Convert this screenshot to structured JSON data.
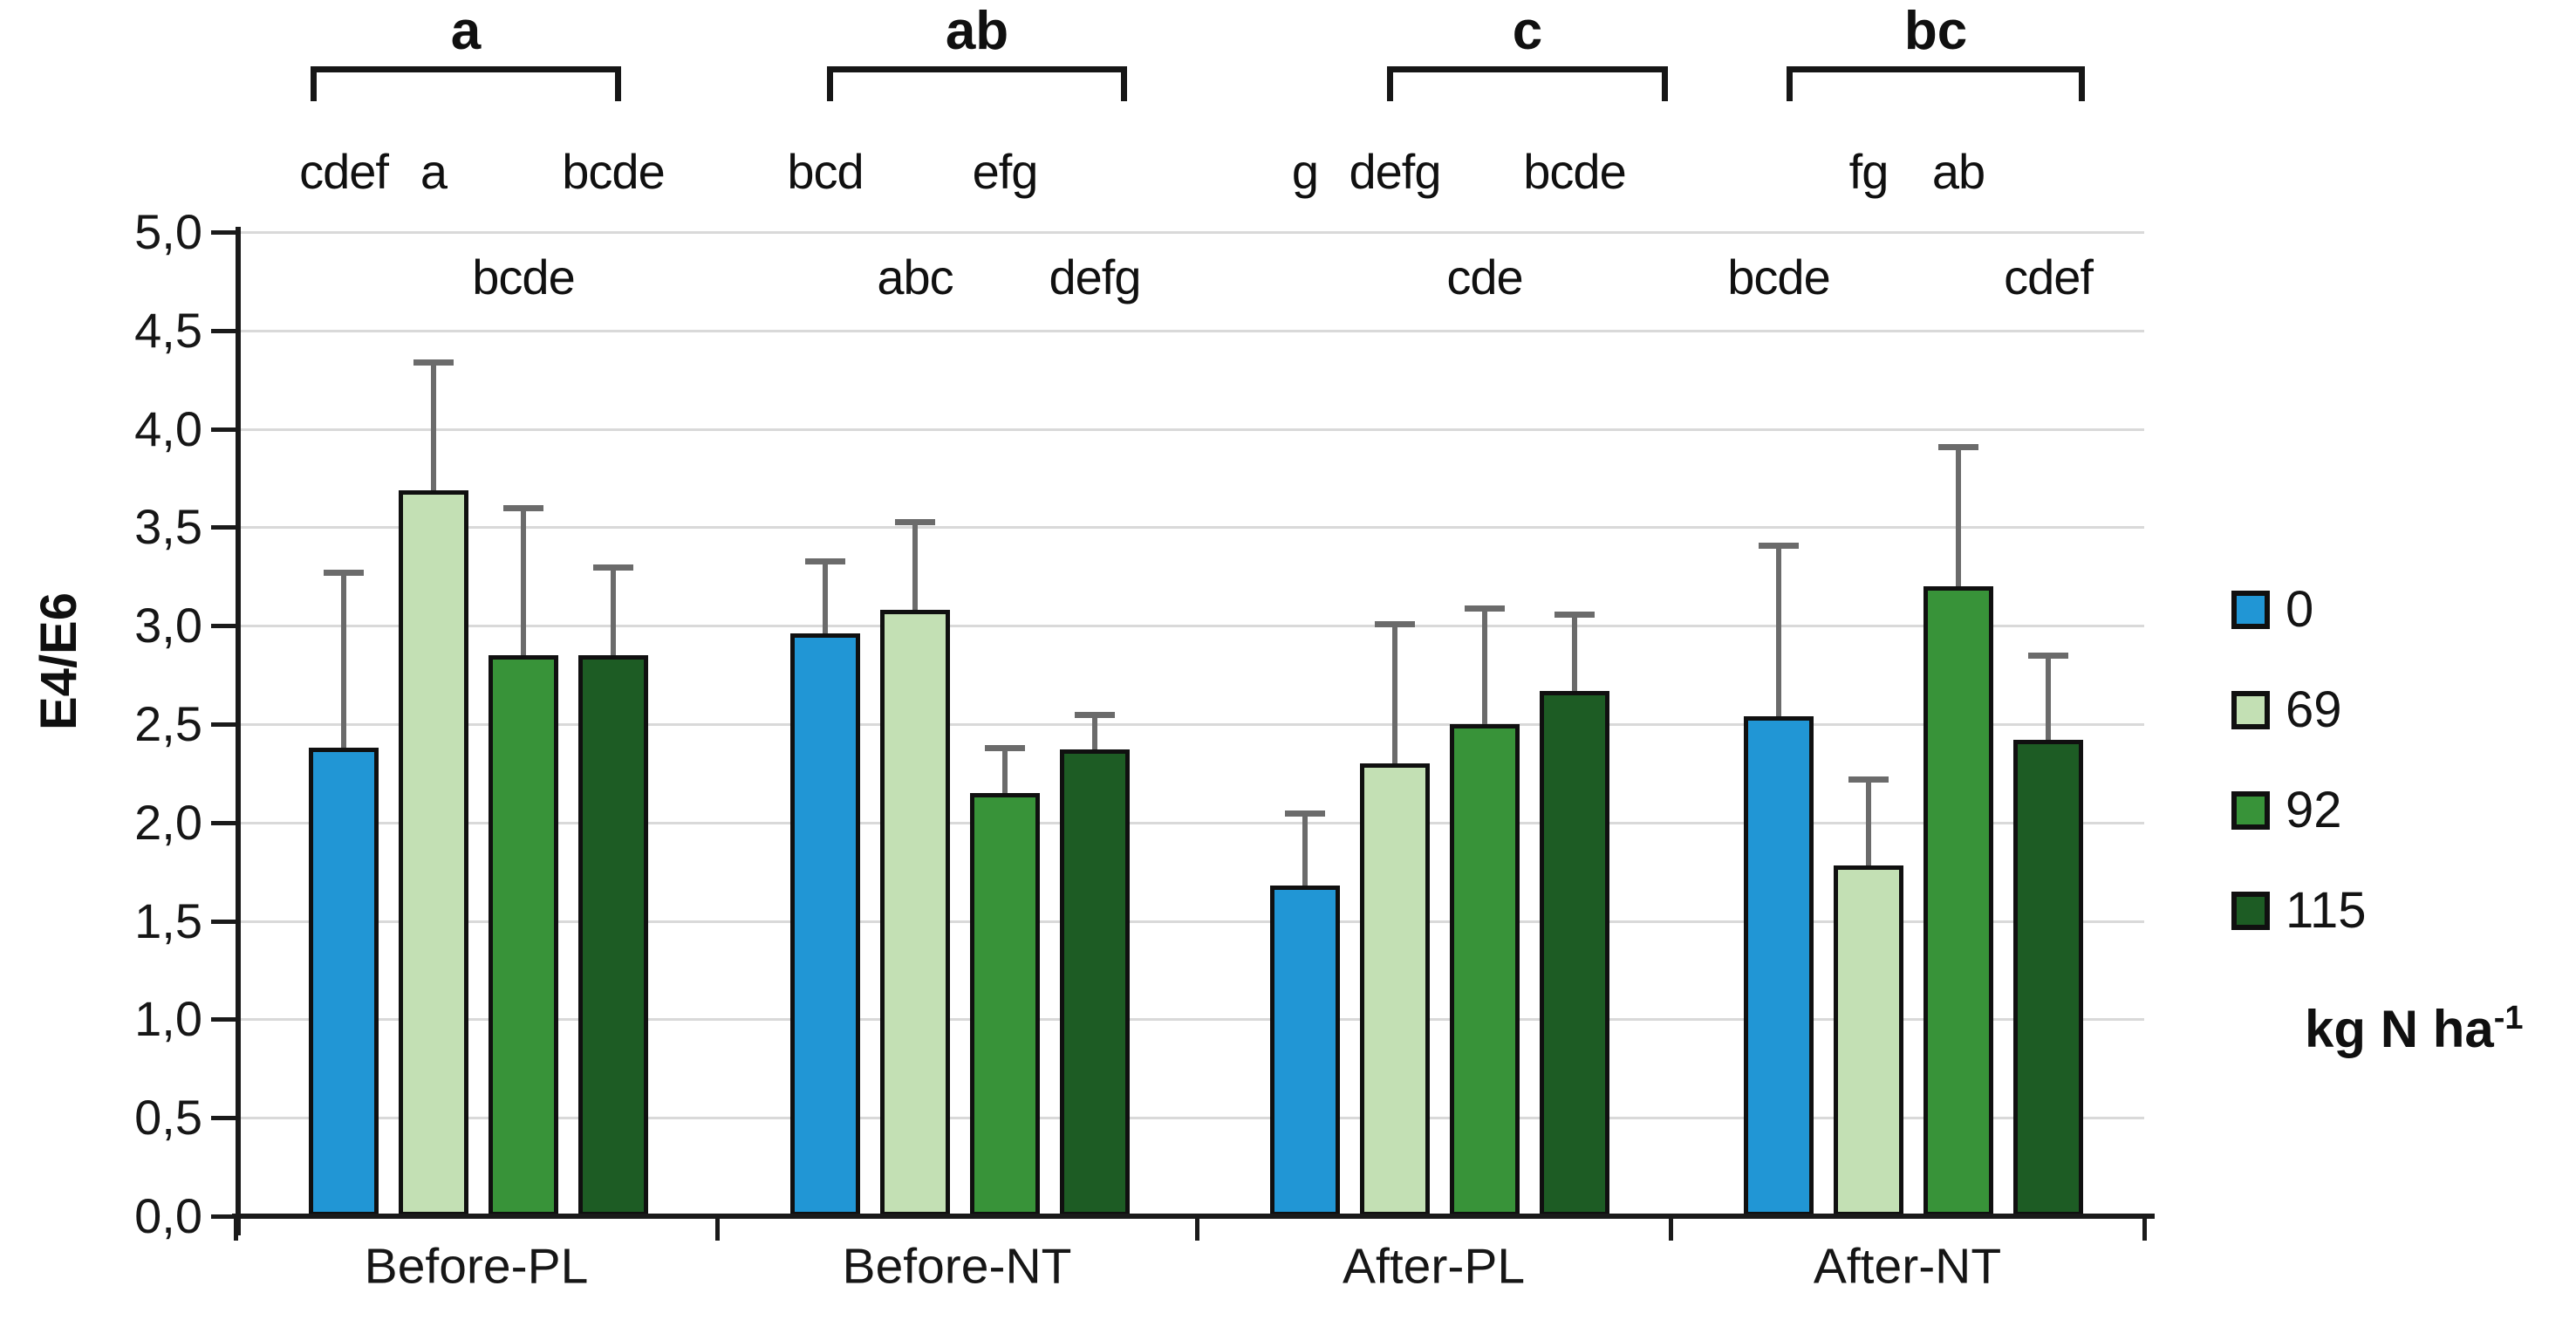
{
  "chart_data": {
    "type": "bar",
    "title": "",
    "ylabel": "E4/E6",
    "xlabel": "",
    "ylim": [
      0,
      5
    ],
    "ytick_step": 0.5,
    "decimal_separator": ",",
    "grid": "horizontal",
    "legend_position": "right",
    "ytick_labels": [
      "0,0",
      "0,5",
      "1,0",
      "1,5",
      "2,0",
      "2,5",
      "3,0",
      "3,5",
      "4,0",
      "4,5",
      "5,0"
    ],
    "categories": [
      "Before-PL",
      "Before-NT",
      "After-PL",
      "After-NT"
    ],
    "series": [
      {
        "name": "0",
        "color": "#2196d5",
        "values": [
          2.38,
          2.96,
          1.68,
          2.54
        ],
        "error_up": [
          0.89,
          0.37,
          0.37,
          0.87
        ],
        "letters": [
          "cdef",
          "bcd",
          "g",
          "bcde"
        ],
        "letter_row": [
          1,
          1,
          1,
          2
        ]
      },
      {
        "name": "69",
        "color": "#c3e0b4",
        "values": [
          3.69,
          3.08,
          2.3,
          1.78
        ],
        "error_up": [
          0.65,
          0.45,
          0.71,
          0.44
        ],
        "letters": [
          "a",
          "abc",
          "defg",
          "fg"
        ],
        "letter_row": [
          1,
          2,
          1,
          1
        ]
      },
      {
        "name": "92",
        "color": "#389339",
        "values": [
          2.85,
          2.15,
          2.5,
          3.2
        ],
        "error_up": [
          0.75,
          0.23,
          0.59,
          0.71
        ],
        "letters": [
          "bcde",
          "efg",
          "cde",
          "ab"
        ],
        "letter_row": [
          2,
          1,
          2,
          1
        ]
      },
      {
        "name": "115",
        "color": "#1d5c24",
        "values": [
          2.85,
          2.37,
          2.67,
          2.42
        ],
        "error_up": [
          0.45,
          0.18,
          0.39,
          0.43
        ],
        "letters": [
          "bcde",
          "defg",
          "bcde",
          "cdef"
        ],
        "letter_row": [
          1,
          2,
          1,
          2
        ]
      }
    ],
    "group_letters": [
      "a",
      "ab",
      "c",
      "bc"
    ],
    "legend": {
      "items": [
        "0",
        "69",
        "92",
        "115"
      ],
      "title_text": "kg N ha",
      "title_sup": "-1"
    }
  }
}
